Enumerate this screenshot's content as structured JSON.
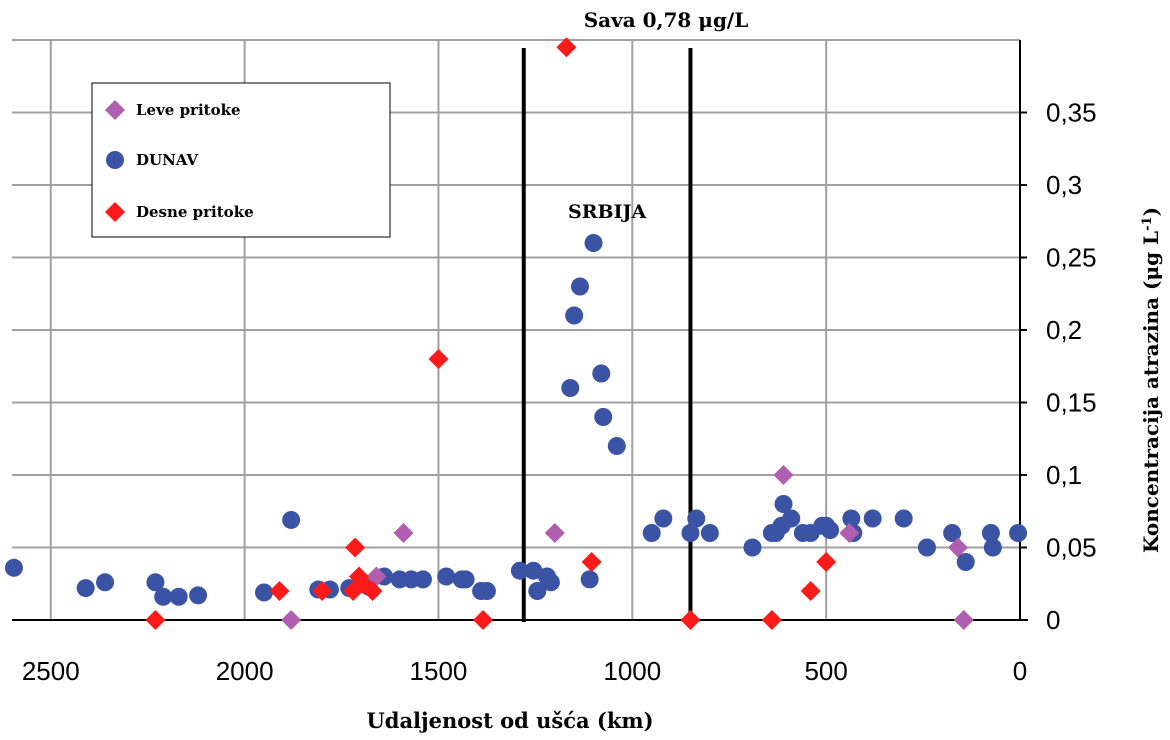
{
  "chart_data": {
    "type": "scatter",
    "title": "",
    "xlabel": "Udaljenost od ušća (km)",
    "ylabel": "Koncentracija atrazina (μg L-1)",
    "ylabel_parts": {
      "main": "Koncentracija atrazina (μg L",
      "sup": "-1",
      "close": ")"
    },
    "xlim": [
      2600,
      0
    ],
    "ylim": [
      0,
      0.4
    ],
    "x_reversed": true,
    "y_axis_side": "right",
    "grid": true,
    "legend_position": "top-left",
    "x_ticks": [
      {
        "value": 2500,
        "label": "2500"
      },
      {
        "value": 2000,
        "label": "2000"
      },
      {
        "value": 1500,
        "label": "1500"
      },
      {
        "value": 1000,
        "label": "1000"
      },
      {
        "value": 500,
        "label": "500"
      },
      {
        "value": 0,
        "label": "0"
      }
    ],
    "y_ticks": [
      {
        "value": 0,
        "label": "0"
      },
      {
        "value": 0.05,
        "label": "0,05"
      },
      {
        "value": 0.1,
        "label": "0,1"
      },
      {
        "value": 0.15,
        "label": "0,15"
      },
      {
        "value": 0.2,
        "label": "0,2"
      },
      {
        "value": 0.25,
        "label": "0,25"
      },
      {
        "value": 0.3,
        "label": "0,3"
      },
      {
        "value": 0.35,
        "label": "0,35"
      }
    ],
    "vertical_lines": [
      1280,
      850
    ],
    "annotations": [
      {
        "id": "sava",
        "text": "Sava 0,78 μg/L"
      },
      {
        "id": "srbija",
        "text": "SRBIJA"
      }
    ],
    "series": [
      {
        "name": "Leve pritoke",
        "marker": "diamond",
        "color": "#b05fb0",
        "points": [
          [
            1590,
            0.06
          ],
          [
            1200,
            0.06
          ],
          [
            610,
            0.1
          ],
          [
            440,
            0.06
          ],
          [
            160,
            0.05
          ],
          [
            1880,
            0.0
          ],
          [
            145,
            0.0
          ],
          [
            1660,
            0.03
          ]
        ]
      },
      {
        "name": "DUNAV",
        "marker": "circle",
        "color": "#3a53a4",
        "points": [
          [
            2595,
            0.036
          ],
          [
            2410,
            0.022
          ],
          [
            2360,
            0.026
          ],
          [
            2230,
            0.026
          ],
          [
            2210,
            0.016
          ],
          [
            2170,
            0.016
          ],
          [
            2120,
            0.017
          ],
          [
            1950,
            0.019
          ],
          [
            1880,
            0.069
          ],
          [
            1810,
            0.021
          ],
          [
            1780,
            0.021
          ],
          [
            1730,
            0.022
          ],
          [
            1680,
            0.023
          ],
          [
            1640,
            0.03
          ],
          [
            1600,
            0.028
          ],
          [
            1570,
            0.028
          ],
          [
            1540,
            0.028
          ],
          [
            1480,
            0.03
          ],
          [
            1440,
            0.028
          ],
          [
            1430,
            0.028
          ],
          [
            1390,
            0.02
          ],
          [
            1375,
            0.02
          ],
          [
            1290,
            0.034
          ],
          [
            1255,
            0.034
          ],
          [
            1245,
            0.02
          ],
          [
            1220,
            0.03
          ],
          [
            1210,
            0.026
          ],
          [
            1110,
            0.028
          ],
          [
            1100,
            0.26
          ],
          [
            1135,
            0.23
          ],
          [
            1150,
            0.21
          ],
          [
            1160,
            0.16
          ],
          [
            1080,
            0.17
          ],
          [
            1075,
            0.14
          ],
          [
            1040,
            0.12
          ],
          [
            950,
            0.06
          ],
          [
            920,
            0.07
          ],
          [
            850,
            0.06
          ],
          [
            835,
            0.07
          ],
          [
            800,
            0.06
          ],
          [
            690,
            0.05
          ],
          [
            640,
            0.06
          ],
          [
            630,
            0.06
          ],
          [
            615,
            0.065
          ],
          [
            610,
            0.08
          ],
          [
            590,
            0.07
          ],
          [
            560,
            0.06
          ],
          [
            540,
            0.06
          ],
          [
            510,
            0.065
          ],
          [
            500,
            0.065
          ],
          [
            490,
            0.062
          ],
          [
            435,
            0.07
          ],
          [
            430,
            0.06
          ],
          [
            380,
            0.07
          ],
          [
            300,
            0.07
          ],
          [
            240,
            0.05
          ],
          [
            175,
            0.06
          ],
          [
            140,
            0.04
          ],
          [
            75,
            0.06
          ],
          [
            70,
            0.05
          ],
          [
            5,
            0.06
          ]
        ]
      },
      {
        "name": "Desne pritoke",
        "marker": "diamond",
        "color": "#ff1a1a",
        "points": [
          [
            2230,
            0.0
          ],
          [
            1910,
            0.02
          ],
          [
            1800,
            0.02
          ],
          [
            1720,
            0.02
          ],
          [
            1715,
            0.05
          ],
          [
            1705,
            0.03
          ],
          [
            1695,
            0.025
          ],
          [
            1670,
            0.02
          ],
          [
            1500,
            0.18
          ],
          [
            1385,
            0.0
          ],
          [
            1170,
            0.395
          ],
          [
            1105,
            0.04
          ],
          [
            850,
            0.0
          ],
          [
            640,
            0.0
          ],
          [
            540,
            0.02
          ],
          [
            500,
            0.04
          ]
        ]
      }
    ]
  }
}
